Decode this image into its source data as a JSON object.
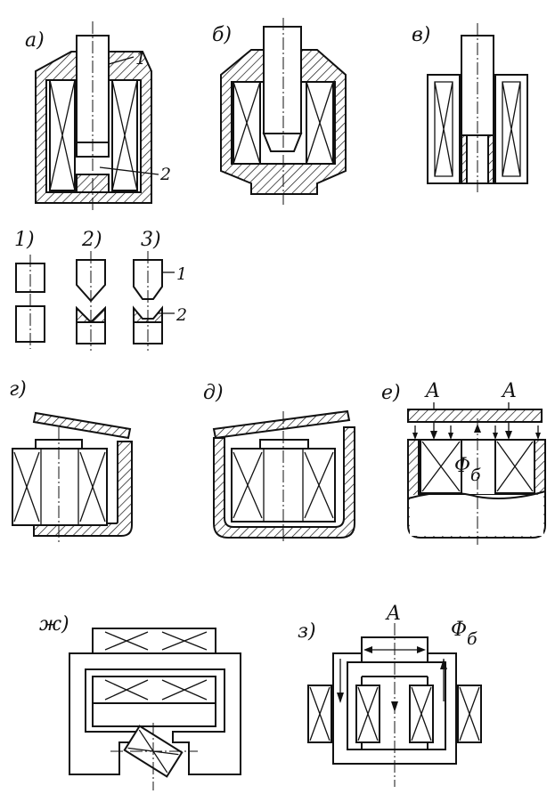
{
  "labels": {
    "a": "а)",
    "b": "б)",
    "v": "в)",
    "g": "г)",
    "d": "д)",
    "e": "е)",
    "zh": "ж)",
    "z": "з)",
    "sub1": "1)",
    "sub2": "2)",
    "sub3": "3)"
  },
  "callouts": {
    "a_1": "1",
    "a_2": "2",
    "tip_1": "1",
    "tip_2": "2",
    "e_A_left": "A",
    "e_A_right": "A",
    "e_flux": "Φ",
    "e_flux_sub": "б",
    "z_A": "A",
    "z_flux": "Φ",
    "z_flux_sub": "б"
  }
}
